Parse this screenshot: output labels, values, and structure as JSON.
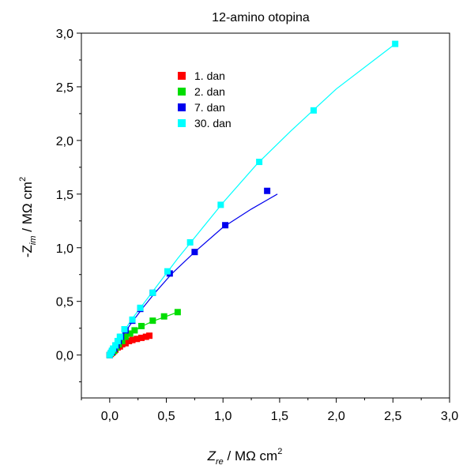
{
  "chart_data": {
    "type": "scatter",
    "title": "12-amino otopina",
    "x_axis": {
      "label_main": "Z",
      "label_sub": "re",
      "label_rest": " / MΩ cm",
      "label_sup": "2",
      "range": [
        -0.25,
        3.0
      ],
      "ticks": [
        0.0,
        0.5,
        1.0,
        1.5,
        2.0,
        2.5,
        3.0
      ],
      "tick_labels": [
        "0,0",
        "0,5",
        "1,0",
        "1,5",
        "2,0",
        "2,5",
        "3,0"
      ]
    },
    "y_axis": {
      "label_main": "-Z",
      "label_sub": "im",
      "label_rest": " / MΩ cm",
      "label_sup": "2",
      "range": [
        -0.4,
        3.0
      ],
      "ticks": [
        0.0,
        0.5,
        1.0,
        1.5,
        2.0,
        2.5,
        3.0
      ],
      "tick_labels": [
        "0,0",
        "0,5",
        "1,0",
        "1,5",
        "2,0",
        "2,5",
        "3,0"
      ]
    },
    "grid": false,
    "legend_position": "top-left",
    "series": [
      {
        "name": "1. dan",
        "color": "#ff0000",
        "points": [
          [
            0.0,
            0.0
          ],
          [
            0.01,
            0.01
          ],
          [
            0.02,
            0.02
          ],
          [
            0.03,
            0.03
          ],
          [
            0.04,
            0.04
          ],
          [
            0.05,
            0.05
          ],
          [
            0.07,
            0.07
          ],
          [
            0.09,
            0.08
          ],
          [
            0.11,
            0.1
          ],
          [
            0.14,
            0.11
          ],
          [
            0.17,
            0.13
          ],
          [
            0.2,
            0.14
          ],
          [
            0.24,
            0.15
          ],
          [
            0.28,
            0.16
          ],
          [
            0.32,
            0.17
          ],
          [
            0.35,
            0.18
          ]
        ],
        "fit": [
          [
            0.0,
            0.0
          ],
          [
            0.05,
            0.05
          ],
          [
            0.1,
            0.09
          ],
          [
            0.15,
            0.12
          ],
          [
            0.2,
            0.14
          ],
          [
            0.26,
            0.155
          ],
          [
            0.32,
            0.168
          ],
          [
            0.36,
            0.18
          ]
        ]
      },
      {
        "name": "2. dan",
        "color": "#00dd00",
        "points": [
          [
            0.0,
            0.0
          ],
          [
            0.02,
            0.02
          ],
          [
            0.04,
            0.04
          ],
          [
            0.06,
            0.07
          ],
          [
            0.08,
            0.1
          ],
          [
            0.11,
            0.13
          ],
          [
            0.14,
            0.17
          ],
          [
            0.18,
            0.2
          ],
          [
            0.22,
            0.23
          ],
          [
            0.28,
            0.27
          ],
          [
            0.38,
            0.32
          ],
          [
            0.48,
            0.36
          ],
          [
            0.6,
            0.4
          ]
        ],
        "fit": [
          [
            0.0,
            0.0
          ],
          [
            0.05,
            0.06
          ],
          [
            0.1,
            0.12
          ],
          [
            0.15,
            0.17
          ],
          [
            0.2,
            0.215
          ],
          [
            0.28,
            0.265
          ],
          [
            0.38,
            0.315
          ],
          [
            0.5,
            0.36
          ],
          [
            0.6,
            0.4
          ]
        ]
      },
      {
        "name": "7. dan",
        "color": "#0000ee",
        "points": [
          [
            0.0,
            0.0
          ],
          [
            0.02,
            0.03
          ],
          [
            0.04,
            0.06
          ],
          [
            0.06,
            0.09
          ],
          [
            0.08,
            0.13
          ],
          [
            0.1,
            0.17
          ],
          [
            0.14,
            0.23
          ],
          [
            0.2,
            0.32
          ],
          [
            0.27,
            0.43
          ],
          [
            0.38,
            0.58
          ],
          [
            0.53,
            0.76
          ],
          [
            0.75,
            0.96
          ],
          [
            1.02,
            1.21
          ],
          [
            1.39,
            1.53
          ]
        ],
        "fit": [
          [
            0.0,
            0.0
          ],
          [
            0.1,
            0.16
          ],
          [
            0.2,
            0.31
          ],
          [
            0.3,
            0.45
          ],
          [
            0.4,
            0.58
          ],
          [
            0.55,
            0.76
          ],
          [
            0.75,
            0.96
          ],
          [
            1.0,
            1.19
          ],
          [
            1.25,
            1.36
          ],
          [
            1.48,
            1.5
          ]
        ]
      },
      {
        "name": "30. dan",
        "color": "#00ffff",
        "points": [
          [
            0.0,
            0.0
          ],
          [
            0.01,
            0.02
          ],
          [
            0.02,
            0.04
          ],
          [
            0.03,
            0.06
          ],
          [
            0.05,
            0.09
          ],
          [
            0.07,
            0.13
          ],
          [
            0.09,
            0.17
          ],
          [
            0.13,
            0.24
          ],
          [
            0.2,
            0.33
          ],
          [
            0.27,
            0.44
          ],
          [
            0.38,
            0.58
          ],
          [
            0.51,
            0.78
          ],
          [
            0.71,
            1.05
          ],
          [
            0.98,
            1.4
          ],
          [
            1.32,
            1.8
          ],
          [
            1.8,
            2.28
          ],
          [
            2.52,
            2.9
          ]
        ],
        "fit": [
          [
            0.0,
            0.0
          ],
          [
            0.1,
            0.18
          ],
          [
            0.2,
            0.34
          ],
          [
            0.4,
            0.62
          ],
          [
            0.6,
            0.9
          ],
          [
            0.8,
            1.16
          ],
          [
            1.0,
            1.42
          ],
          [
            1.3,
            1.78
          ],
          [
            1.6,
            2.09
          ],
          [
            2.0,
            2.48
          ],
          [
            2.52,
            2.9
          ]
        ]
      }
    ]
  }
}
